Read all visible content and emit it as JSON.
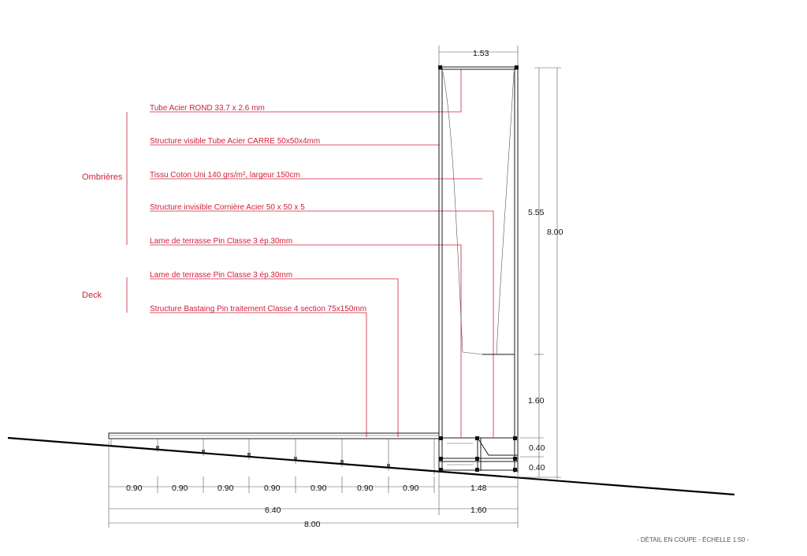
{
  "groups": {
    "ombrieres": "Ombrières",
    "deck": "Deck"
  },
  "callouts": {
    "tube_rond": "Tube Acier ROND 33.7 x 2.6 mm",
    "structure_visible": "Structure visible Tube Acier CARRE 50x50x4mm",
    "tissu": "Tissu Coton Uni 140 grs/m², largeur 150cm",
    "structure_invisible": "Structure invisible Cornière Acier 50 x 50 x 5",
    "lame_ombriere": "Lame de terrasse Pin  Classe 3 ép.30mm",
    "lame_deck": "Lame de terrasse Pin  Classe 3 ép.30mm",
    "bastaing": "Structure Bastaing Pin traitement Classe 4 section 75x150mm"
  },
  "dimensions": {
    "top_width": "1.53",
    "canopy_height": "5.55",
    "total_height": "8.00",
    "lower_height": "1.60",
    "plinth_upper": "0.40",
    "plinth_lower": "0.40",
    "spans": [
      "0.90",
      "0.90",
      "0.90",
      "0.90",
      "0.90",
      "0.90",
      "0.90"
    ],
    "plinth_width": "1.48",
    "deck_total": "6.40",
    "canopy_total": "1.60",
    "overall": "8.00"
  },
  "caption": "- DÉTAIL EN COUPE - ÉCHELLE 1:50 -"
}
